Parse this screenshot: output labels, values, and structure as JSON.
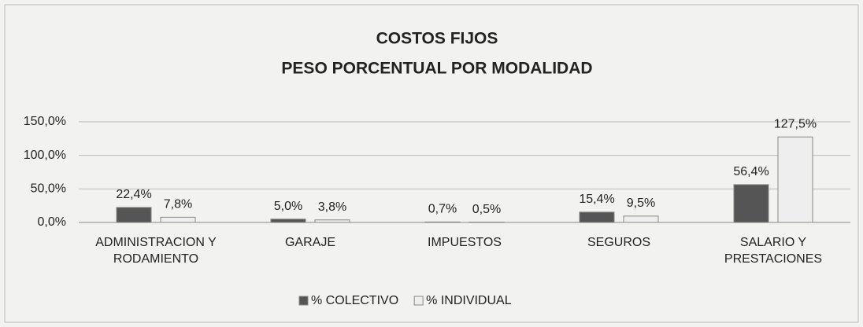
{
  "chart_data": {
    "type": "bar",
    "title": "COSTOS FIJOS",
    "subtitle": "PESO PORCENTUAL POR MODALIDAD",
    "categories": [
      "ADMINISTRACION Y RODAMIENTO",
      "GARAJE",
      "IMPUESTOS",
      "SEGUROS",
      "SALARIO Y PRESTACIONES"
    ],
    "series": [
      {
        "name": "% COLECTIVO",
        "color": "#555555",
        "values": [
          22.4,
          5.0,
          0.7,
          15.4,
          56.4
        ],
        "value_labels": [
          "22,4%",
          "5,0%",
          "0,7%",
          "15,4%",
          "56,4%"
        ]
      },
      {
        "name": "% INDIVIDUAL",
        "color": "#eeeeee",
        "values": [
          7.8,
          3.8,
          0.5,
          9.5,
          127.5
        ],
        "value_labels": [
          "7,8%",
          "3,8%",
          "0,5%",
          "9,5%",
          "127,5%"
        ]
      }
    ],
    "ylim": [
      0,
      150
    ],
    "yticks": [
      {
        "value": 0,
        "label": "0,0%"
      },
      {
        "value": 50,
        "label": "50,0%"
      },
      {
        "value": 100,
        "label": "100,0%"
      },
      {
        "value": 150,
        "label": "150,0%"
      }
    ],
    "grid": true,
    "legend": "bottom"
  }
}
